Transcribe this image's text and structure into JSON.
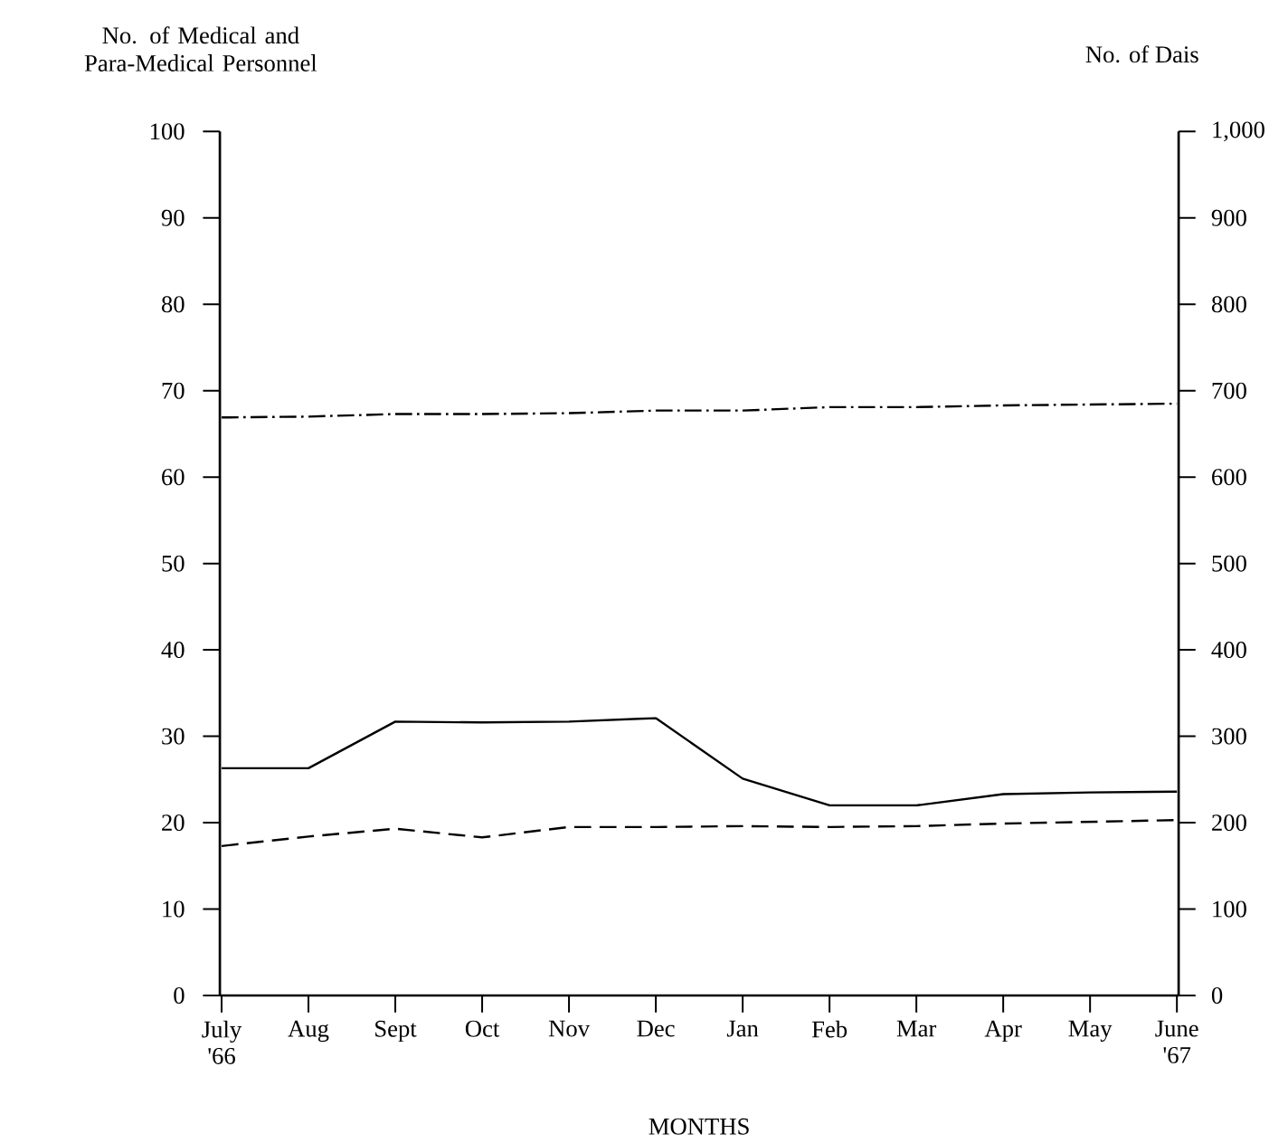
{
  "chart_data": {
    "type": "line",
    "xlabel": "MONTHS",
    "ylabel": "No. of Medical and Para-Medical Personnel",
    "y2label": "No. of Dais",
    "categories": [
      "July '66",
      "Aug",
      "Sept",
      "Oct",
      "Nov",
      "Dec",
      "Jan",
      "Feb",
      "Mar",
      "Apr",
      "May",
      "June '67"
    ],
    "series": [
      {
        "color": "#000000",
        "line_style": "solid",
        "values": [
          26.3,
          26.3,
          31.7,
          31.6,
          31.7,
          32.1,
          25.1,
          22,
          22,
          23.3,
          23.5,
          23.6
        ]
      },
      {
        "color": "#000000",
        "line_style": "dashed",
        "values": [
          17.3,
          18.4,
          19.3,
          18.3,
          19.5,
          19.5,
          19.6,
          19.5,
          19.6,
          19.9,
          20.1,
          20.3
        ]
      },
      {
        "color": "#000000",
        "line_style": "dashdot",
        "axis": "y2",
        "values": [
          669,
          670,
          673,
          673,
          674,
          677,
          677,
          681,
          681,
          683,
          684,
          685
        ]
      }
    ],
    "ylim": [
      0,
      100
    ],
    "yticks": [
      0,
      10,
      20,
      30,
      40,
      50,
      60,
      70,
      80,
      90,
      100
    ],
    "y2lim": [
      0,
      1000
    ],
    "y2ticks": [
      0,
      100,
      200,
      300,
      400,
      500,
      600,
      700,
      800,
      900,
      {
        "value": 1000,
        "label": "1,000"
      }
    ],
    "marker": "none"
  }
}
